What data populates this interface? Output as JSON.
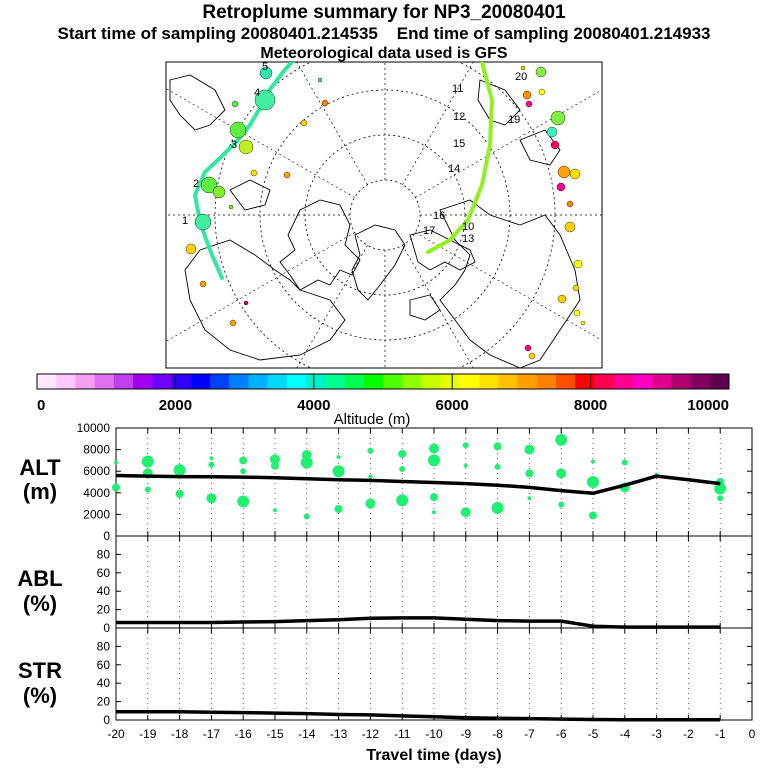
{
  "header": {
    "title": "Retroplume summary for NP3_20080401",
    "start_label": "Start time of sampling 20080401.214535",
    "end_label": "End time of sampling 20080401.214933",
    "met_label": "Meteorological data used is GFS"
  },
  "colorbar": {
    "ticks": [
      "0",
      "2000",
      "4000",
      "6000",
      "8000",
      "10000"
    ],
    "label": "Altitude (m)",
    "colors": [
      "#ffe8ff",
      "#ffc8ff",
      "#f4a0f4",
      "#e070f0",
      "#c040f0",
      "#a000f0",
      "#7000ff",
      "#3000ff",
      "#0000ff",
      "#0040ff",
      "#0080ff",
      "#00b0ff",
      "#00d8ff",
      "#00ffff",
      "#00f0c8",
      "#00ff90",
      "#00ff50",
      "#00ff00",
      "#50ff00",
      "#90ff00",
      "#c8ff00",
      "#e8ff00",
      "#ffff00",
      "#ffe000",
      "#ffc000",
      "#ffa000",
      "#ff8000",
      "#ff5000",
      "#ff0000",
      "#ff0050",
      "#ff0090",
      "#ff00c0",
      "#e00090",
      "#b00070",
      "#800060",
      "#600050"
    ]
  },
  "map": {
    "day_labels": [
      "1",
      "2",
      "3",
      "4",
      "5",
      "10",
      "11",
      "12",
      "13",
      "14",
      "15",
      "16",
      "17",
      "18",
      "19",
      "20"
    ]
  },
  "chart_data": [
    {
      "type": "line",
      "title": "ALT",
      "ylabel": "ALT (m)",
      "label_line1": "ALT",
      "label_line2": "(m)",
      "ylim": [
        0,
        10000
      ],
      "yticks": [
        "0",
        "2000",
        "4000",
        "6000",
        "8000",
        "10000"
      ],
      "x": [
        -20,
        -19,
        -18,
        -17,
        -16,
        -15,
        -14,
        -13,
        -12,
        -11,
        -10,
        -9,
        -8,
        -7,
        -6,
        -5,
        -4,
        -3,
        -2,
        -1
      ],
      "values": [
        5600,
        5550,
        5500,
        5480,
        5450,
        5400,
        5300,
        5200,
        5150,
        5050,
        4950,
        4850,
        4700,
        4500,
        4200,
        3950,
        4700,
        5550,
        5200,
        4850
      ],
      "scatter_points": [
        [
          -20,
          6800
        ],
        [
          -20,
          4500
        ],
        [
          -19,
          6900
        ],
        [
          -19,
          4300
        ],
        [
          -19,
          5800
        ],
        [
          -18,
          6400
        ],
        [
          -18,
          3900
        ],
        [
          -18,
          6100
        ],
        [
          -17,
          6600
        ],
        [
          -17,
          3500
        ],
        [
          -17,
          7200
        ],
        [
          -16,
          7000
        ],
        [
          -16,
          3200
        ],
        [
          -16,
          6000
        ],
        [
          -15,
          7100
        ],
        [
          -15,
          2400
        ],
        [
          -15,
          6500
        ],
        [
          -14,
          6800
        ],
        [
          -14,
          1800
        ],
        [
          -14,
          7500
        ],
        [
          -13,
          7300
        ],
        [
          -13,
          2500
        ],
        [
          -13,
          6000
        ],
        [
          -12,
          7900
        ],
        [
          -12,
          3000
        ],
        [
          -12,
          5500
        ],
        [
          -11,
          7600
        ],
        [
          -11,
          3300
        ],
        [
          -11,
          6200
        ],
        [
          -10,
          8100
        ],
        [
          -10,
          2200
        ],
        [
          -10,
          3600
        ],
        [
          -10,
          7000
        ],
        [
          -9,
          8400
        ],
        [
          -9,
          2200
        ],
        [
          -9,
          6500
        ],
        [
          -8,
          8300
        ],
        [
          -8,
          2600
        ],
        [
          -8,
          6400
        ],
        [
          -7,
          8000
        ],
        [
          -7,
          3500
        ],
        [
          -7,
          5800
        ],
        [
          -6,
          8900
        ],
        [
          -6,
          2900
        ],
        [
          -6,
          5800
        ],
        [
          -5,
          6900
        ],
        [
          -5,
          1900
        ],
        [
          -5,
          5000
        ],
        [
          -4,
          6800
        ],
        [
          -4,
          4500
        ],
        [
          -3,
          5700
        ],
        [
          -1,
          5000
        ],
        [
          -1,
          4400
        ],
        [
          -1,
          3500
        ]
      ]
    },
    {
      "type": "line",
      "title": "ABL",
      "ylabel": "ABL (%)",
      "label_line1": "ABL",
      "label_line2": "(%)",
      "ylim": [
        0,
        100
      ],
      "yticks": [
        "0",
        "20",
        "40",
        "60",
        "80"
      ],
      "x": [
        -20,
        -19,
        -18,
        -17,
        -16,
        -15,
        -14,
        -13,
        -12,
        -11,
        -10,
        -9,
        -8,
        -7,
        -6,
        -5,
        -4,
        -3,
        -2,
        -1
      ],
      "values": [
        6,
        6,
        6,
        6,
        6.5,
        7,
        8,
        9,
        10.5,
        11,
        11,
        9.5,
        8,
        7.5,
        7.5,
        2,
        1,
        1,
        1,
        1
      ]
    },
    {
      "type": "line",
      "title": "STR",
      "ylabel": "STR (%)",
      "label_line1": "STR",
      "label_line2": "(%)",
      "ylim": [
        0,
        100
      ],
      "yticks": [
        "0",
        "20",
        "40",
        "60",
        "80"
      ],
      "xlabel": "Travel time (days)",
      "xlim": [
        -20,
        0
      ],
      "xticks": [
        "-20",
        "-19",
        "-18",
        "-17",
        "-16",
        "-15",
        "-14",
        "-13",
        "-12",
        "-11",
        "-10",
        "-9",
        "-8",
        "-7",
        "-6",
        "-5",
        "-4",
        "-3",
        "-2",
        "-1",
        "0"
      ],
      "x": [
        -20,
        -19,
        -18,
        -17,
        -16,
        -15,
        -14,
        -13,
        -12,
        -11,
        -10,
        -9,
        -8,
        -7,
        -6,
        -5,
        -4,
        -3,
        -2,
        -1
      ],
      "values": [
        9,
        9,
        9,
        8.5,
        8,
        7.5,
        7,
        6,
        5.5,
        4.5,
        3.5,
        2.5,
        2,
        1.5,
        1,
        0.5,
        0.3,
        0.3,
        0.2,
        0.2
      ]
    }
  ]
}
